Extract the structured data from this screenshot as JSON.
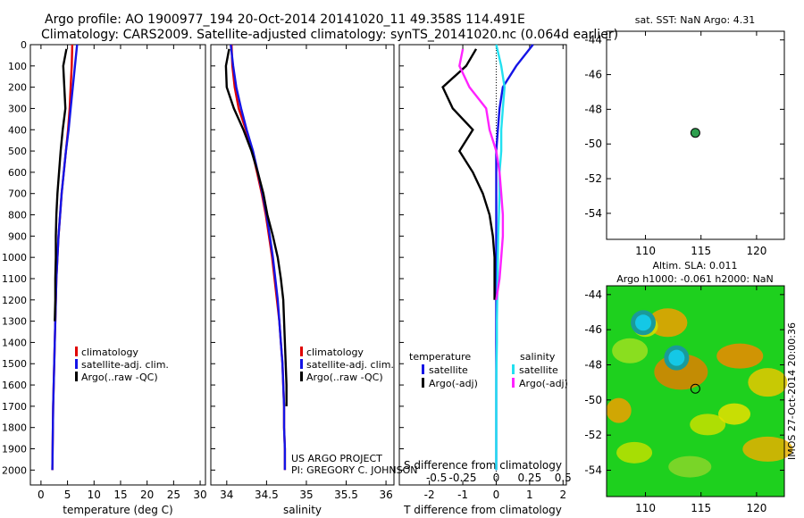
{
  "header": {
    "line1": "Argo profile: AO 1900977_194 20-Oct-2014 20141020_11 49.358S 114.491E",
    "line2": "Climatology: CARS2009. Satellite-adjusted climatology: synTS_20141020.nc (0.064d earlier)"
  },
  "colors": {
    "climatology": "#e00000",
    "satellite": "#1414e6",
    "argo": "#000000",
    "sal_sat": "#22e0f0",
    "sal_argo": "#ff22ff",
    "map_bg": "#1ed01e",
    "dot": "#2e9e4e"
  },
  "chart_data": [
    {
      "type": "line",
      "name": "temperature",
      "xlabel": "temperature (deg C)",
      "ylabel": "",
      "xlim": [
        -2,
        31
      ],
      "ylim": [
        2070,
        0
      ],
      "xticks": [
        0,
        5,
        10,
        15,
        20,
        25,
        30
      ],
      "yticks": [
        0,
        100,
        200,
        300,
        400,
        500,
        600,
        700,
        800,
        900,
        1000,
        1100,
        1200,
        1300,
        1400,
        1500,
        1600,
        1700,
        1800,
        1900,
        2000
      ],
      "legend": [
        "climatology",
        "satellite-adj. clim.",
        "Argo(..raw -QC)"
      ],
      "series": [
        {
          "name": "climatology",
          "color": "#e00000",
          "x": [
            5.9,
            5.8,
            5.6,
            5.4,
            5.1,
            4.7,
            4.3,
            3.9,
            3.6,
            3.3,
            3.1,
            2.9,
            2.8,
            2.7,
            2.6,
            2.5,
            2.4,
            2.3,
            2.25,
            2.2,
            2.15
          ],
          "y": [
            0,
            100,
            200,
            300,
            400,
            500,
            600,
            700,
            800,
            900,
            1000,
            1100,
            1200,
            1300,
            1400,
            1500,
            1600,
            1700,
            1800,
            1900,
            2000
          ]
        },
        {
          "name": "satellite-adj. clim.",
          "color": "#1414e6",
          "x": [
            6.8,
            6.4,
            6.0,
            5.6,
            5.2,
            4.7,
            4.3,
            3.9,
            3.6,
            3.3,
            3.1,
            2.9,
            2.8,
            2.7,
            2.6,
            2.5,
            2.4,
            2.3,
            2.25,
            2.2,
            2.15
          ],
          "y": [
            0,
            100,
            200,
            300,
            400,
            500,
            600,
            700,
            800,
            900,
            1000,
            1100,
            1200,
            1300,
            1400,
            1500,
            1600,
            1700,
            1800,
            1900,
            2000
          ]
        },
        {
          "name": "Argo(..raw -QC)",
          "color": "#000000",
          "x": [
            4.8,
            4.2,
            4.4,
            4.6,
            4.1,
            3.7,
            3.4,
            3.1,
            2.9,
            2.8,
            2.8,
            2.7,
            2.7,
            2.6
          ],
          "y": [
            20,
            100,
            200,
            300,
            400,
            500,
            600,
            700,
            800,
            900,
            1000,
            1100,
            1200,
            1300
          ]
        }
      ]
    },
    {
      "type": "line",
      "name": "salinity",
      "xlabel": "salinity",
      "ylabel": "",
      "xlim": [
        33.8,
        36.1
      ],
      "ylim": [
        2070,
        0
      ],
      "xticks": [
        34,
        34.5,
        35,
        35.5,
        36
      ],
      "yticks": [],
      "legend": [
        "climatology",
        "satellite-adj. clim.",
        "Argo(..raw -QC)"
      ],
      "annotation": [
        "US ARGO PROJECT",
        "PI: GREGORY C. JOHNSON"
      ],
      "series": [
        {
          "name": "climatology",
          "color": "#e00000",
          "x": [
            34.06,
            34.07,
            34.1,
            34.15,
            34.24,
            34.32,
            34.38,
            34.44,
            34.49,
            34.53,
            34.57,
            34.6,
            34.63,
            34.66,
            34.68,
            34.7,
            34.71,
            34.72,
            34.72,
            34.73,
            34.73
          ],
          "y": [
            0,
            100,
            200,
            300,
            400,
            500,
            600,
            700,
            800,
            900,
            1000,
            1100,
            1200,
            1300,
            1400,
            1500,
            1600,
            1700,
            1800,
            1900,
            2000
          ]
        },
        {
          "name": "satellite-adj. clim.",
          "color": "#1414e6",
          "x": [
            34.05,
            34.08,
            34.12,
            34.18,
            34.25,
            34.33,
            34.39,
            34.45,
            34.5,
            34.54,
            34.58,
            34.61,
            34.64,
            34.66,
            34.68,
            34.7,
            34.71,
            34.72,
            34.72,
            34.73,
            34.73
          ],
          "y": [
            0,
            100,
            200,
            300,
            400,
            500,
            600,
            700,
            800,
            900,
            1000,
            1100,
            1200,
            1300,
            1400,
            1500,
            1600,
            1700,
            1800,
            1900,
            2000
          ]
        },
        {
          "name": "Argo(..raw -QC)",
          "color": "#000000",
          "x": [
            34.03,
            33.99,
            34.0,
            34.09,
            34.21,
            34.31,
            34.39,
            34.46,
            34.51,
            34.58,
            34.64,
            34.68,
            34.71,
            34.72,
            34.73,
            34.74,
            34.75,
            34.75
          ],
          "y": [
            20,
            100,
            200,
            300,
            400,
            500,
            600,
            700,
            800,
            900,
            1000,
            1100,
            1200,
            1300,
            1400,
            1500,
            1600,
            1700
          ]
        }
      ]
    },
    {
      "type": "line",
      "name": "difference",
      "xlabel": "T difference from climatology",
      "xlabel2": "S difference from climatology",
      "top_ticks": [
        "-0.5",
        "-0.25",
        "0",
        "0.25",
        "0.5"
      ],
      "xlim": [
        -2.9,
        2.1
      ],
      "ylim": [
        2070,
        0
      ],
      "xticks": [
        -2,
        -1,
        0,
        1,
        2
      ],
      "yticks": [],
      "legend_title": [
        "temperature",
        "salinity"
      ],
      "legend": [
        "satellite",
        "Argo(-adj)",
        "satellite",
        "Argo(-adj)"
      ],
      "series": [
        {
          "name": "satellite",
          "color": "#1414e6",
          "x": [
            1.1,
            0.6,
            0.2,
            0.1,
            0.05,
            0.0,
            0.0,
            0.0,
            0.0,
            0.0,
            0.0,
            0.0,
            0.0,
            0.0,
            0.0,
            0.0,
            0.0,
            0.0,
            0.0,
            0.0,
            0.0
          ],
          "y": [
            0,
            100,
            200,
            300,
            400,
            500,
            600,
            700,
            800,
            900,
            1000,
            1100,
            1200,
            1300,
            1400,
            1500,
            1600,
            1700,
            1800,
            1900,
            2000
          ]
        },
        {
          "name": "Argo(-adj)",
          "color": "#000000",
          "x": [
            -0.6,
            -0.9,
            -1.6,
            -1.3,
            -0.7,
            -1.1,
            -0.7,
            -0.4,
            -0.2,
            -0.1,
            -0.05,
            -0.05,
            -0.05
          ],
          "y": [
            20,
            100,
            200,
            300,
            400,
            500,
            600,
            700,
            800,
            900,
            1000,
            1100,
            1200
          ]
        },
        {
          "name": "satellite",
          "color": "#22e0f0",
          "x": [
            0.0,
            0.15,
            0.25,
            0.2,
            0.15,
            0.15,
            0.1,
            0.1,
            0.08,
            0.06,
            0.05,
            0.04,
            0.03,
            0.02,
            0.02,
            0.01,
            0.0,
            0.0,
            0.0,
            0.0,
            0.0
          ],
          "y": [
            0,
            100,
            200,
            300,
            400,
            500,
            600,
            700,
            800,
            900,
            1000,
            1100,
            1200,
            1300,
            1400,
            1500,
            1600,
            1700,
            1800,
            1900,
            2000
          ]
        },
        {
          "name": "Argo(-adj)",
          "color": "#ff22ff",
          "x": [
            -1.0,
            -1.1,
            -0.8,
            -0.3,
            -0.2,
            0.0,
            0.1,
            0.15,
            0.2,
            0.2,
            0.15,
            0.1,
            0.0
          ],
          "y": [
            20,
            100,
            200,
            300,
            400,
            500,
            600,
            700,
            800,
            900,
            1000,
            1100,
            1200
          ]
        }
      ]
    },
    {
      "type": "scatter",
      "name": "sst-map",
      "title": "sat. SST: NaN Argo: 4.31",
      "xlim": [
        106.5,
        122.5
      ],
      "ylim": [
        -55.5,
        -43.5
      ],
      "xticks": [
        110,
        115,
        120
      ],
      "yticks": [
        -44,
        -46,
        -48,
        -50,
        -52,
        -54
      ],
      "points": [
        {
          "x": 114.491,
          "y": -49.358
        }
      ]
    },
    {
      "type": "heatmap",
      "name": "sla-map",
      "title_lines": [
        "Altim. SLA: 0.011",
        "Argo h1000: -0.061 h2000: NaN"
      ],
      "side_label": "IMOS 27-Oct-2014 20:00:36",
      "xlim": [
        106.5,
        122.5
      ],
      "ylim": [
        -55.5,
        -43.5
      ],
      "xticks": [
        110,
        115,
        120
      ],
      "yticks": [
        -44,
        -46,
        -48,
        -50,
        -52,
        -54
      ],
      "points": [
        {
          "x": 114.491,
          "y": -49.358
        }
      ]
    }
  ]
}
